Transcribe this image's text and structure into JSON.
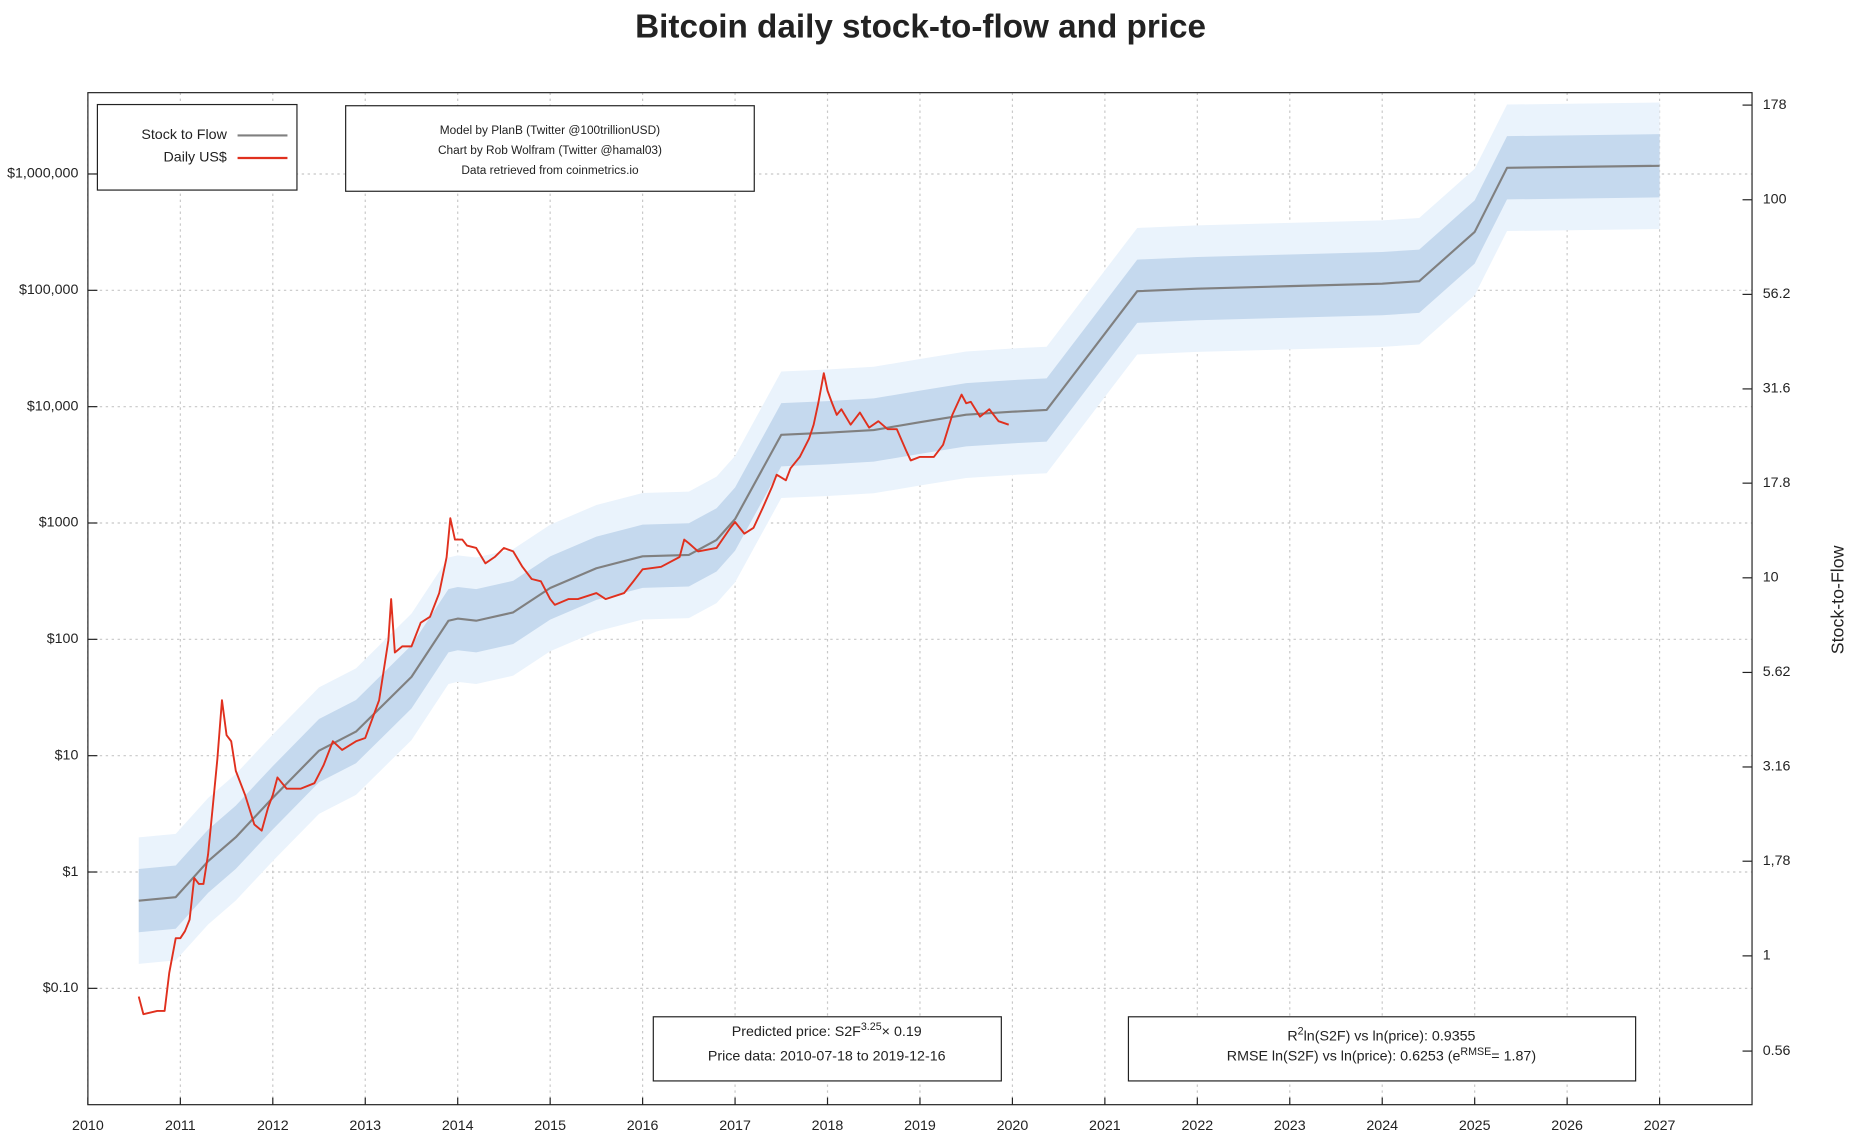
{
  "chart_data": {
    "type": "line",
    "title": "Bitcoin daily stock-to-flow and price",
    "y2label": "Stock-to-Flow",
    "log_y": true,
    "log_y2": true,
    "grid": true,
    "legend_position": "upper left",
    "xlim": [
      2010,
      2028
    ],
    "xticks": [
      2010,
      2011,
      2012,
      2013,
      2014,
      2015,
      2016,
      2017,
      2018,
      2019,
      2020,
      2021,
      2022,
      2023,
      2024,
      2025,
      2026,
      2027
    ],
    "ylim": [
      0.01,
      5000000
    ],
    "yticks": [
      {
        "value": 0.1,
        "label": "$0.10"
      },
      {
        "value": 1,
        "label": "$1"
      },
      {
        "value": 10,
        "label": "$10"
      },
      {
        "value": 100,
        "label": "$100"
      },
      {
        "value": 1000,
        "label": "$1000"
      },
      {
        "value": 10000,
        "label": "$10,000"
      },
      {
        "value": 100000,
        "label": "$100,000"
      },
      {
        "value": 1000000,
        "label": "$1,000,000"
      }
    ],
    "y2lim": [
      0.404,
      192
    ],
    "y2ticks": [
      0.56,
      1,
      {
        "value": 1.78,
        "label": "1,78"
      },
      3.16,
      5.62,
      10,
      17.8,
      31.6,
      56.2,
      100,
      178
    ],
    "series": [
      {
        "name": "Stock to Flow",
        "color": "#808080",
        "axis": "y2",
        "band_colors": [
          "#eaf3fc",
          "#c5d9ee"
        ],
        "x": [
          2010.55,
          2010.95,
          2011.3,
          2011.6,
          2012.0,
          2012.5,
          2012.9,
          2013.5,
          2013.9,
          2014.0,
          2014.2,
          2014.6,
          2015.0,
          2015.5,
          2016.0,
          2016.5,
          2016.8,
          2017.0,
          2017.5,
          2018.0,
          2018.5,
          2019.0,
          2019.5,
          2020.0,
          2020.37,
          2021.35,
          2022.0,
          2023.0,
          2024.0,
          2024.4,
          2025.0,
          2025.35,
          2027.0
        ],
        "values": [
          1.4,
          1.43,
          1.78,
          2.06,
          2.62,
          3.49,
          3.92,
          5.47,
          7.7,
          7.8,
          7.7,
          8.1,
          9.4,
          10.6,
          11.4,
          11.5,
          12.6,
          14.3,
          23.9,
          24.2,
          24.6,
          25.8,
          27.0,
          27.5,
          27.8,
          57.3,
          58.2,
          59.1,
          60.0,
          60.9,
          82.2,
          121.5,
          123
        ]
      },
      {
        "name": "Daily US$",
        "color": "#e0301e",
        "x": [
          2010.55,
          2010.6,
          2010.75,
          2010.83,
          2010.88,
          2010.95,
          2011.0,
          2011.05,
          2011.1,
          2011.15,
          2011.2,
          2011.25,
          2011.3,
          2011.35,
          2011.4,
          2011.45,
          2011.5,
          2011.55,
          2011.6,
          2011.7,
          2011.8,
          2011.88,
          2011.95,
          2012.0,
          2012.05,
          2012.15,
          2012.3,
          2012.45,
          2012.55,
          2012.65,
          2012.75,
          2012.9,
          2013.0,
          2013.15,
          2013.25,
          2013.28,
          2013.32,
          2013.4,
          2013.5,
          2013.6,
          2013.7,
          2013.8,
          2013.88,
          2013.92,
          2013.97,
          2014.05,
          2014.1,
          2014.2,
          2014.3,
          2014.4,
          2014.5,
          2014.6,
          2014.7,
          2014.8,
          2014.9,
          2015.0,
          2015.05,
          2015.2,
          2015.3,
          2015.5,
          2015.6,
          2015.8,
          2015.9,
          2016.0,
          2016.2,
          2016.4,
          2016.45,
          2016.5,
          2016.6,
          2016.8,
          2016.95,
          2017.0,
          2017.1,
          2017.2,
          2017.3,
          2017.4,
          2017.45,
          2017.55,
          2017.6,
          2017.7,
          2017.8,
          2017.85,
          2017.9,
          2017.96,
          2018.0,
          2018.05,
          2018.1,
          2018.15,
          2018.25,
          2018.35,
          2018.45,
          2018.55,
          2018.65,
          2018.75,
          2018.85,
          2018.9,
          2019.0,
          2019.15,
          2019.25,
          2019.35,
          2019.45,
          2019.5,
          2019.55,
          2019.65,
          2019.75,
          2019.85,
          2019.96
        ],
        "values": [
          0.085,
          0.06,
          0.064,
          0.064,
          0.136,
          0.27,
          0.27,
          0.31,
          0.39,
          0.89,
          0.79,
          0.79,
          1.42,
          3.6,
          9.3,
          30,
          15,
          13.3,
          7.4,
          4.6,
          2.56,
          2.27,
          3.6,
          4.6,
          6.5,
          5.2,
          5.2,
          5.8,
          8.3,
          13.3,
          11.2,
          13.3,
          14.2,
          30,
          98,
          222,
          77,
          87,
          87,
          139,
          156,
          250,
          508,
          1100,
          720,
          720,
          640,
          610,
          450,
          510,
          610,
          570,
          420,
          330,
          315,
          222,
          198,
          222,
          222,
          250,
          222,
          250,
          315,
          400,
          420,
          510,
          720,
          670,
          570,
          610,
          910,
          1020,
          810,
          910,
          1350,
          2050,
          2600,
          2330,
          2950,
          3700,
          5300,
          7000,
          10700,
          19400,
          13700,
          10700,
          8500,
          9500,
          7000,
          8900,
          6600,
          7500,
          6400,
          6400,
          4200,
          3450,
          3700,
          3700,
          4700,
          8500,
          12700,
          10700,
          11000,
          8200,
          9500,
          7500,
          7000
        ]
      }
    ],
    "credits": [
      "Model by PlanB (Twitter @100trillionUSD)",
      "Chart by Rob Wolfram (Twitter @hamal03)",
      "Data retrieved from coinmetrics.io"
    ],
    "prediction_box": {
      "pre": "Predicted price: S2F",
      "sup": "3.25",
      "post": "× 0.19",
      "line2": "Price data: 2010-07-18 to 2019-12-16"
    },
    "fit_box": {
      "r_pre": "R",
      "r_sup": "2",
      "r_post": "ln(S2F) vs ln(price): 0.9355",
      "rmse_pre": "RMSE ln(S2F) vs ln(price): 0.6253 (e",
      "rmse_sup": "RMSE",
      "rmse_eq": "= ",
      "rmse_factor": 1.87,
      "rmse_end": ")"
    }
  }
}
